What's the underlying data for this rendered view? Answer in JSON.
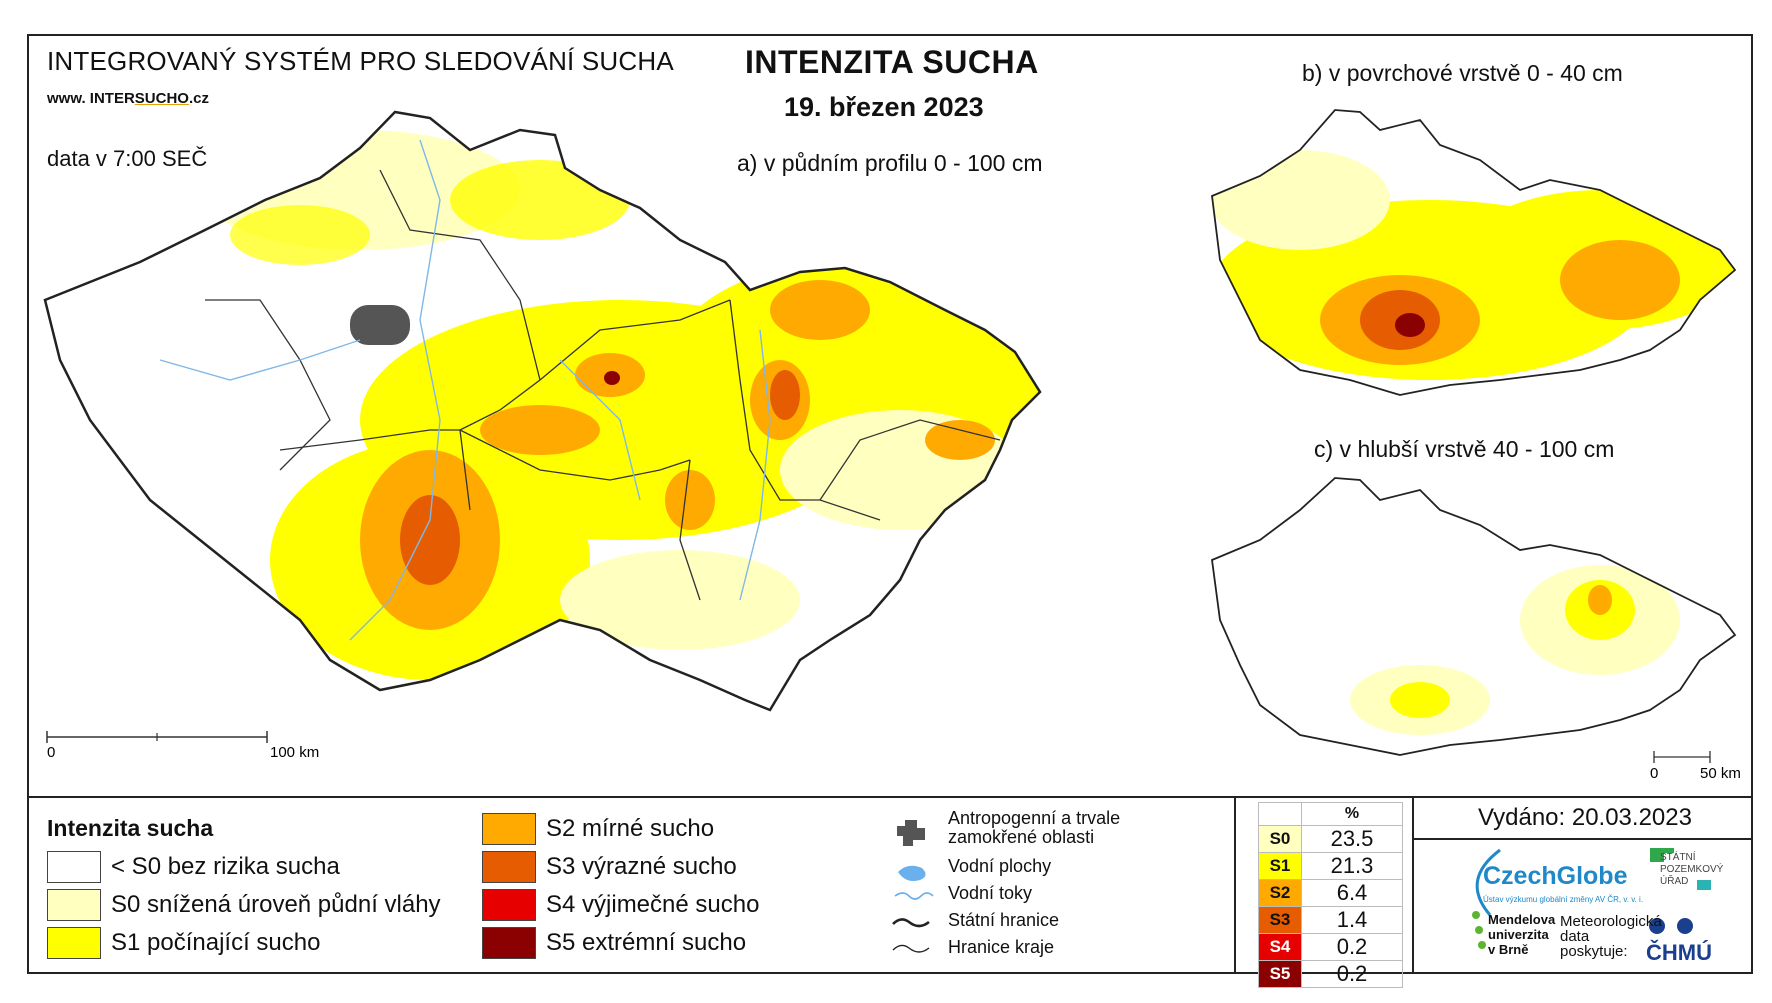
{
  "header": {
    "system_title": "INTEGROVANÝ SYSTÉM PRO SLEDOVÁNÍ SUCHA",
    "url_prefix": "www. INTER",
    "url_highlight": "SUCHO",
    "url_suffix": ".cz",
    "data_time": "data v 7:00 SEČ",
    "main_title": "INTENZITA SUCHA",
    "date": "19. březen 2023"
  },
  "maps": {
    "a_title": "a) v půdním profilu 0 - 100 cm",
    "b_title": "b) v povrchové vrstvě 0 - 40 cm",
    "c_title": "c) v hlubší vrstvě 40 - 100 cm",
    "a_scale_start": "0",
    "a_scale_end": "100 km",
    "c_scale_start": "0",
    "c_scale_end": "50 km"
  },
  "legend": {
    "title": "Intenzita sucha",
    "categories": [
      {
        "label": "< S0 bez rizika sucha",
        "color": "#ffffff"
      },
      {
        "label": "S0 snížená úroveň půdní vláhy",
        "color": "#ffffc0"
      },
      {
        "label": "S1 počínající sucho",
        "color": "#ffff00"
      },
      {
        "label": "S2 mírné sucho",
        "color": "#ffaa00"
      },
      {
        "label": "S3 výrazné sucho",
        "color": "#e65c00"
      },
      {
        "label": "S4 výjimečné sucho",
        "color": "#e60000"
      },
      {
        "label": "S5 extrémní sucho",
        "color": "#8b0000"
      }
    ],
    "symbols": {
      "anthropogenic_line1": "Antropogenní a trvale",
      "anthropogenic_line2": "zamokřené oblasti",
      "water_bodies": "Vodní plochy",
      "water_streams": "Vodní toky",
      "state_border": "Státní hranice",
      "region_border": "Hranice kraje"
    }
  },
  "percent_table": {
    "header": "%",
    "rows": [
      {
        "code": "S0",
        "value": "23.5",
        "color": "#ffffc0"
      },
      {
        "code": "S1",
        "value": "21.3",
        "color": "#ffff00"
      },
      {
        "code": "S2",
        "value": "6.4",
        "color": "#ffaa00"
      },
      {
        "code": "S3",
        "value": "1.4",
        "color": "#e65c00"
      },
      {
        "code": "S4",
        "value": "0.2",
        "color": "#e60000"
      },
      {
        "code": "S5",
        "value": "0.2",
        "color": "#8b0000"
      }
    ]
  },
  "footer": {
    "issued": "Vydáno: 20.03.2023",
    "czechglobe": "CzechGlobe",
    "czechglobe_sub": "Ústav výzkumu globální změny AV ČR, v. v. i.",
    "spu": [
      "STÁTNÍ",
      "POZEMKOVÝ",
      "ÚŘAD"
    ],
    "mendelu": [
      "Mendelova",
      "univerzita",
      "v Brně"
    ],
    "met_data": [
      "Meteorologická",
      "data",
      "poskytuje:"
    ],
    "chmu": "ČHMÚ"
  }
}
